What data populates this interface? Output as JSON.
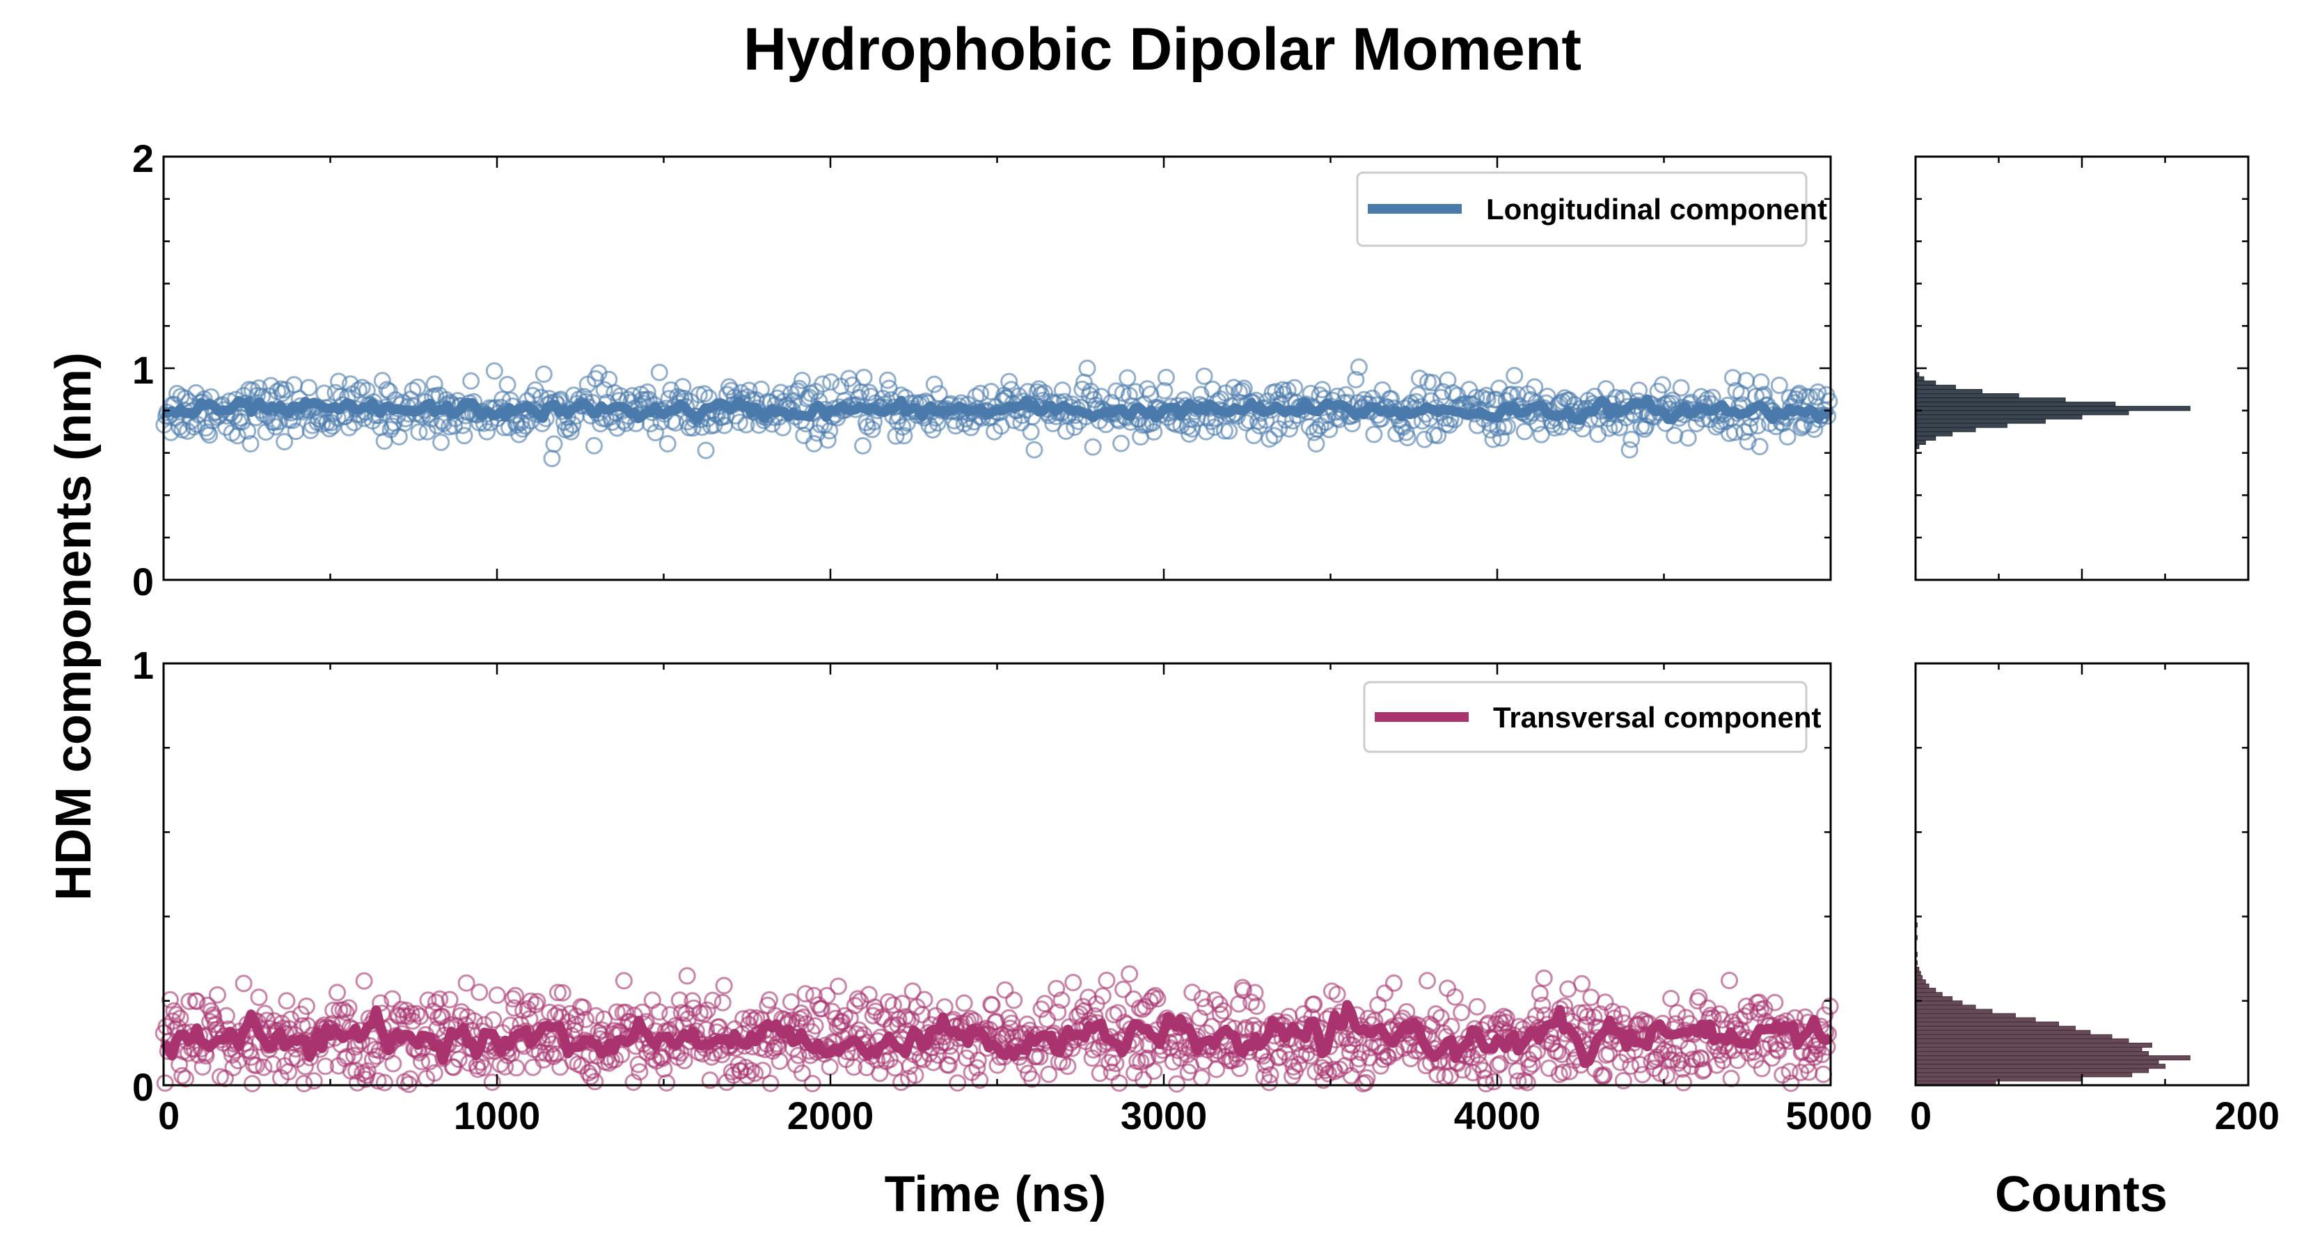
{
  "chart_data": {
    "title": "Hydrophobic Dipolar Moment",
    "ylabel": "HDM components (nm)",
    "xlabel": "Time (ns)",
    "hist_xlabel": "Counts",
    "time_range": [
      0,
      5000
    ],
    "time_ticks": [
      "0",
      "1000",
      "2000",
      "3000",
      "4000",
      "5000"
    ],
    "hist_range": [
      0,
      200
    ],
    "hist_ticks": [
      "0",
      "200"
    ],
    "panels": [
      {
        "type": "scatter",
        "legend": "Longitudinal component",
        "color": "#4a7aab",
        "hist_color": "#1b2631",
        "ylim": [
          0,
          2
        ],
        "y_ticks": [
          "0",
          "1",
          "2"
        ],
        "mean": 0.8,
        "scatter_spread": 0.065,
        "running_mean_spread": 0.02,
        "n_points": 1000,
        "hist_bins": [
          {
            "y": 0.63,
            "count": 2
          },
          {
            "y": 0.65,
            "count": 6
          },
          {
            "y": 0.67,
            "count": 12
          },
          {
            "y": 0.69,
            "count": 22
          },
          {
            "y": 0.71,
            "count": 36
          },
          {
            "y": 0.73,
            "count": 55
          },
          {
            "y": 0.75,
            "count": 78
          },
          {
            "y": 0.77,
            "count": 100
          },
          {
            "y": 0.79,
            "count": 128
          },
          {
            "y": 0.81,
            "count": 165
          },
          {
            "y": 0.83,
            "count": 120
          },
          {
            "y": 0.85,
            "count": 90
          },
          {
            "y": 0.87,
            "count": 62
          },
          {
            "y": 0.89,
            "count": 40
          },
          {
            "y": 0.91,
            "count": 24
          },
          {
            "y": 0.93,
            "count": 12
          },
          {
            "y": 0.95,
            "count": 5
          },
          {
            "y": 0.97,
            "count": 2
          }
        ]
      },
      {
        "type": "scatter",
        "legend": "Transversal component",
        "color": "#a8336f",
        "hist_color": "#4a2a3a",
        "ylim": [
          0,
          1
        ],
        "y_ticks": [
          "0",
          "1"
        ],
        "mean": 0.11,
        "scatter_spread": 0.055,
        "running_mean_spread": 0.02,
        "n_points": 1300,
        "hist_bins": [
          {
            "y": 0.005,
            "count": 48
          },
          {
            "y": 0.015,
            "count": 100
          },
          {
            "y": 0.025,
            "count": 130
          },
          {
            "y": 0.035,
            "count": 140
          },
          {
            "y": 0.045,
            "count": 150
          },
          {
            "y": 0.055,
            "count": 146
          },
          {
            "y": 0.065,
            "count": 165
          },
          {
            "y": 0.075,
            "count": 140
          },
          {
            "y": 0.085,
            "count": 136
          },
          {
            "y": 0.095,
            "count": 142
          },
          {
            "y": 0.105,
            "count": 128
          },
          {
            "y": 0.115,
            "count": 118
          },
          {
            "y": 0.125,
            "count": 105
          },
          {
            "y": 0.135,
            "count": 96
          },
          {
            "y": 0.145,
            "count": 86
          },
          {
            "y": 0.155,
            "count": 72
          },
          {
            "y": 0.165,
            "count": 60
          },
          {
            "y": 0.175,
            "count": 46
          },
          {
            "y": 0.185,
            "count": 36
          },
          {
            "y": 0.195,
            "count": 28
          },
          {
            "y": 0.205,
            "count": 22
          },
          {
            "y": 0.215,
            "count": 16
          },
          {
            "y": 0.225,
            "count": 12
          },
          {
            "y": 0.235,
            "count": 8
          },
          {
            "y": 0.245,
            "count": 6
          },
          {
            "y": 0.255,
            "count": 4
          },
          {
            "y": 0.265,
            "count": 3
          },
          {
            "y": 0.275,
            "count": 2
          },
          {
            "y": 0.29,
            "count": 1
          },
          {
            "y": 0.31,
            "count": 1
          },
          {
            "y": 0.35,
            "count": 1
          },
          {
            "y": 0.38,
            "count": 1
          }
        ]
      }
    ]
  }
}
